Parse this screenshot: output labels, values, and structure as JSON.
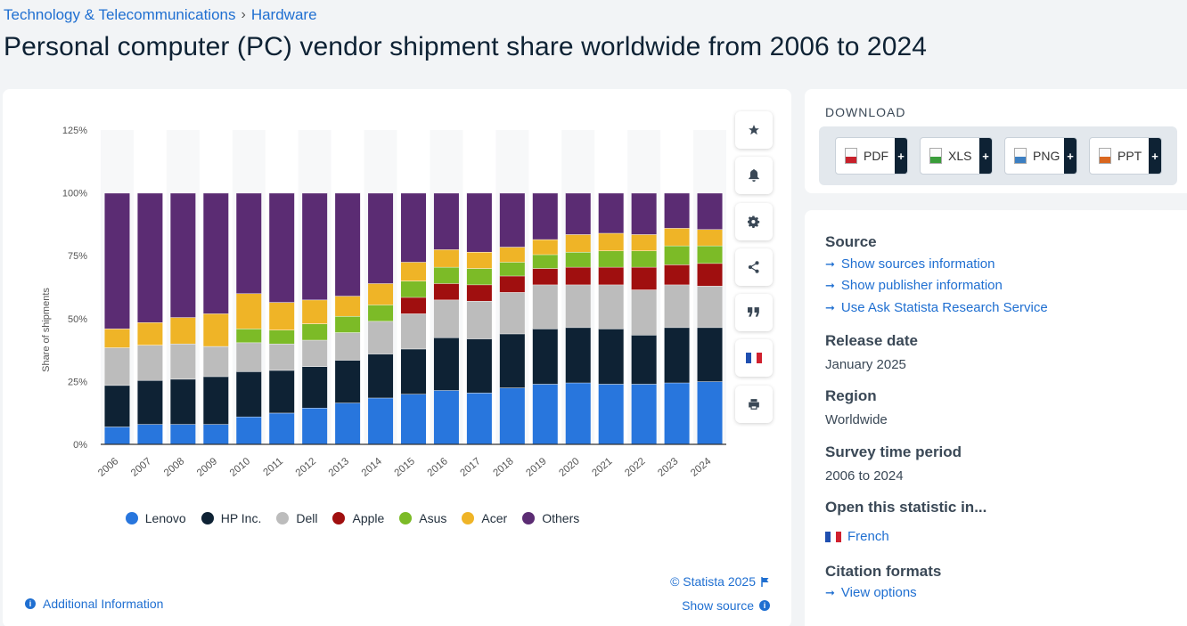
{
  "breadcrumb": {
    "category": "Technology & Telecommunications",
    "separator": "›",
    "subcategory": "Hardware"
  },
  "title": "Personal computer (PC) vendor shipment share worldwide from 2006 to 2024",
  "chart_actions": [
    {
      "name": "star-icon"
    },
    {
      "name": "bell-icon"
    },
    {
      "name": "gear-icon"
    },
    {
      "name": "share-icon"
    },
    {
      "name": "quote-icon"
    },
    {
      "name": "french-flag-icon"
    },
    {
      "name": "print-icon"
    }
  ],
  "chart_data": {
    "type": "bar",
    "stacked": true,
    "ylabel": "Share of shipments",
    "ylim": [
      0,
      125
    ],
    "yticks": [
      "0%",
      "25%",
      "50%",
      "75%",
      "100%",
      "125%"
    ],
    "categories": [
      "2006",
      "2007",
      "2008",
      "2009",
      "2010",
      "2011",
      "2012",
      "2013",
      "2014",
      "2015",
      "2016",
      "2017",
      "2018",
      "2019",
      "2020",
      "2021",
      "2022",
      "2023",
      "2024"
    ],
    "series": [
      {
        "name": "Lenovo",
        "color": "#2876dd",
        "values": [
          7,
          8,
          8,
          8,
          11,
          12.5,
          14.5,
          16.5,
          18.5,
          20,
          21.5,
          20.5,
          22.5,
          24,
          24.5,
          24,
          24,
          24.5,
          25
        ]
      },
      {
        "name": "HP Inc.",
        "color": "#0e2234",
        "values": [
          16.5,
          17.5,
          18,
          19,
          18,
          17,
          16.5,
          17,
          17.5,
          18,
          21,
          21.5,
          21.5,
          22,
          22,
          22,
          19.5,
          22,
          21.5
        ]
      },
      {
        "name": "Dell",
        "color": "#bcbcbc",
        "values": [
          15,
          14,
          14,
          12,
          11.5,
          10.5,
          10.5,
          11,
          13,
          14,
          15,
          15,
          16.5,
          17.5,
          17,
          17.5,
          18,
          17,
          16.5
        ]
      },
      {
        "name": "Apple",
        "color": "#a00f0f",
        "values": [
          0,
          0,
          0,
          0,
          0,
          0,
          0,
          0,
          0,
          6.5,
          6.5,
          6.5,
          6.5,
          6.5,
          7,
          7,
          9,
          8,
          9
        ]
      },
      {
        "name": "Asus",
        "color": "#7cbb27",
        "values": [
          0,
          0,
          0,
          0,
          5.5,
          5.5,
          6.5,
          6.5,
          6.5,
          6.5,
          6.5,
          6.5,
          5.5,
          5.5,
          6,
          6.5,
          6.5,
          7.5,
          7
        ]
      },
      {
        "name": "Acer",
        "color": "#efb427",
        "values": [
          7.5,
          9,
          10.5,
          13,
          14,
          11,
          9.5,
          8,
          8.5,
          7.5,
          7,
          6.5,
          6,
          6,
          7,
          7,
          6.5,
          7,
          6.5
        ]
      },
      {
        "name": "Others",
        "color": "#5b2c73",
        "values": [
          54,
          51.5,
          49.5,
          48,
          40,
          43.5,
          42.5,
          41,
          36,
          27.5,
          22.5,
          23.5,
          21.5,
          18.5,
          16.5,
          16,
          16.5,
          14,
          14.5
        ]
      }
    ],
    "legend_position": "bottom"
  },
  "footer": {
    "additional_info": "Additional Information",
    "copyright": "© Statista 2025",
    "show_source": "Show source"
  },
  "download": {
    "title": "DOWNLOAD",
    "formats": [
      {
        "label": "PDF",
        "color": "#c8202a"
      },
      {
        "label": "XLS",
        "color": "#3a9d3a"
      },
      {
        "label": "PNG",
        "color": "#3c7fc2"
      },
      {
        "label": "PPT",
        "color": "#d9661e"
      }
    ],
    "plus": "+"
  },
  "info": {
    "source_title": "Source",
    "source_links": [
      "Show sources information",
      "Show publisher information",
      "Use Ask Statista Research Service"
    ],
    "release_title": "Release date",
    "release_value": "January 2025",
    "region_title": "Region",
    "region_value": "Worldwide",
    "survey_title": "Survey time period",
    "survey_value": "2006 to 2024",
    "open_title": "Open this statistic in...",
    "open_link": "French",
    "citation_title": "Citation formats",
    "citation_link": "View options"
  }
}
